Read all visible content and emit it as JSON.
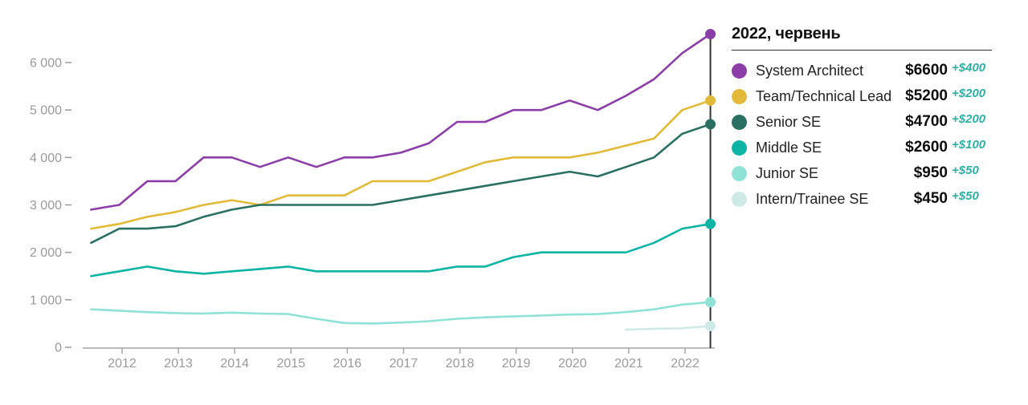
{
  "legend": {
    "title": "2022, червень",
    "items": [
      {
        "id": "system-architect",
        "label": "System Architect",
        "value": "$6600",
        "delta": "+$400"
      },
      {
        "id": "team-technical-lead",
        "label": "Team/Technical Lead",
        "value": "$5200",
        "delta": "+$200"
      },
      {
        "id": "senior-se",
        "label": "Senior SE",
        "value": "$4700",
        "delta": "+$200"
      },
      {
        "id": "middle-se",
        "label": "Middle SE",
        "value": "$2600",
        "delta": "+$100"
      },
      {
        "id": "junior-se",
        "label": "Junior SE",
        "value": "$950",
        "delta": "+$50"
      },
      {
        "id": "intern-trainee-se",
        "label": "Intern/Trainee SE",
        "value": "$450",
        "delta": "+$50"
      }
    ]
  },
  "colors": {
    "system-architect": "#8b3da8",
    "team-technical-lead": "#e2ba39",
    "senior-se": "#2a7062",
    "middle-se": "#0db4a4",
    "junior-se": "#90e2d6",
    "intern-trainee-se": "#cfeae6",
    "delta_text": "#2cb0a2",
    "axis_text": "#9a9a9a",
    "axis_line": "#a5a5a5",
    "current_date_line": "#333333"
  },
  "chart_data": {
    "type": "line",
    "title": "",
    "xlabel": "",
    "ylabel": "",
    "grid": false,
    "legend_position": "right",
    "x_unit": "year (half-yearly survey points, June & December)",
    "xlim": [
      2011.2,
      2022.7
    ],
    "ylim": [
      0,
      6800
    ],
    "x_ticks": [
      2012,
      2013,
      2014,
      2015,
      2016,
      2017,
      2018,
      2019,
      2020,
      2021,
      2022
    ],
    "y_ticks": [
      {
        "value": 0,
        "label": "0"
      },
      {
        "value": 1000,
        "label": "1 000"
      },
      {
        "value": 2000,
        "label": "2 000"
      },
      {
        "value": 3000,
        "label": "3 000"
      },
      {
        "value": 4000,
        "label": "4 000"
      },
      {
        "value": 5000,
        "label": "5 000"
      },
      {
        "value": 6000,
        "label": "6 000"
      }
    ],
    "current_date_marker_x": 2022.45,
    "x": [
      2011.45,
      2011.95,
      2012.45,
      2012.95,
      2013.45,
      2013.95,
      2014.45,
      2014.95,
      2015.45,
      2015.95,
      2016.45,
      2016.95,
      2017.45,
      2017.95,
      2018.45,
      2018.95,
      2019.45,
      2019.95,
      2020.45,
      2020.95,
      2021.45,
      2021.95,
      2022.45
    ],
    "series": [
      {
        "id": "system-architect",
        "name": "System Architect",
        "values": [
          2900,
          3000,
          3500,
          3500,
          4000,
          4000,
          3800,
          4000,
          3800,
          4000,
          4000,
          4100,
          4300,
          4750,
          4750,
          5000,
          5000,
          5200,
          5000,
          5300,
          5650,
          6200,
          6600
        ]
      },
      {
        "id": "team-technical-lead",
        "name": "Team/Technical Lead",
        "values": [
          2500,
          2600,
          2750,
          2850,
          3000,
          3100,
          3000,
          3200,
          3200,
          3200,
          3500,
          3500,
          3500,
          3700,
          3900,
          4000,
          4000,
          4000,
          4100,
          4250,
          4400,
          5000,
          5200
        ]
      },
      {
        "id": "senior-se",
        "name": "Senior SE",
        "values": [
          2200,
          2500,
          2500,
          2550,
          2750,
          2900,
          3000,
          3000,
          3000,
          3000,
          3000,
          3100,
          3200,
          3300,
          3400,
          3500,
          3600,
          3700,
          3600,
          3800,
          4000,
          4500,
          4700
        ]
      },
      {
        "id": "middle-se",
        "name": "Middle SE",
        "values": [
          1500,
          1600,
          1700,
          1600,
          1550,
          1600,
          1650,
          1700,
          1600,
          1600,
          1600,
          1600,
          1600,
          1700,
          1700,
          1900,
          2000,
          2000,
          2000,
          2000,
          2200,
          2500,
          2600
        ]
      },
      {
        "id": "junior-se",
        "name": "Junior SE",
        "values": [
          800,
          770,
          740,
          720,
          710,
          730,
          710,
          700,
          600,
          510,
          500,
          520,
          550,
          600,
          630,
          650,
          670,
          690,
          700,
          740,
          800,
          900,
          950
        ]
      },
      {
        "id": "intern-trainee-se",
        "name": "Intern/Trainee SE",
        "values": [
          null,
          null,
          null,
          null,
          null,
          null,
          null,
          null,
          null,
          null,
          null,
          null,
          null,
          null,
          null,
          null,
          null,
          null,
          null,
          370,
          390,
          400,
          450
        ]
      }
    ]
  }
}
